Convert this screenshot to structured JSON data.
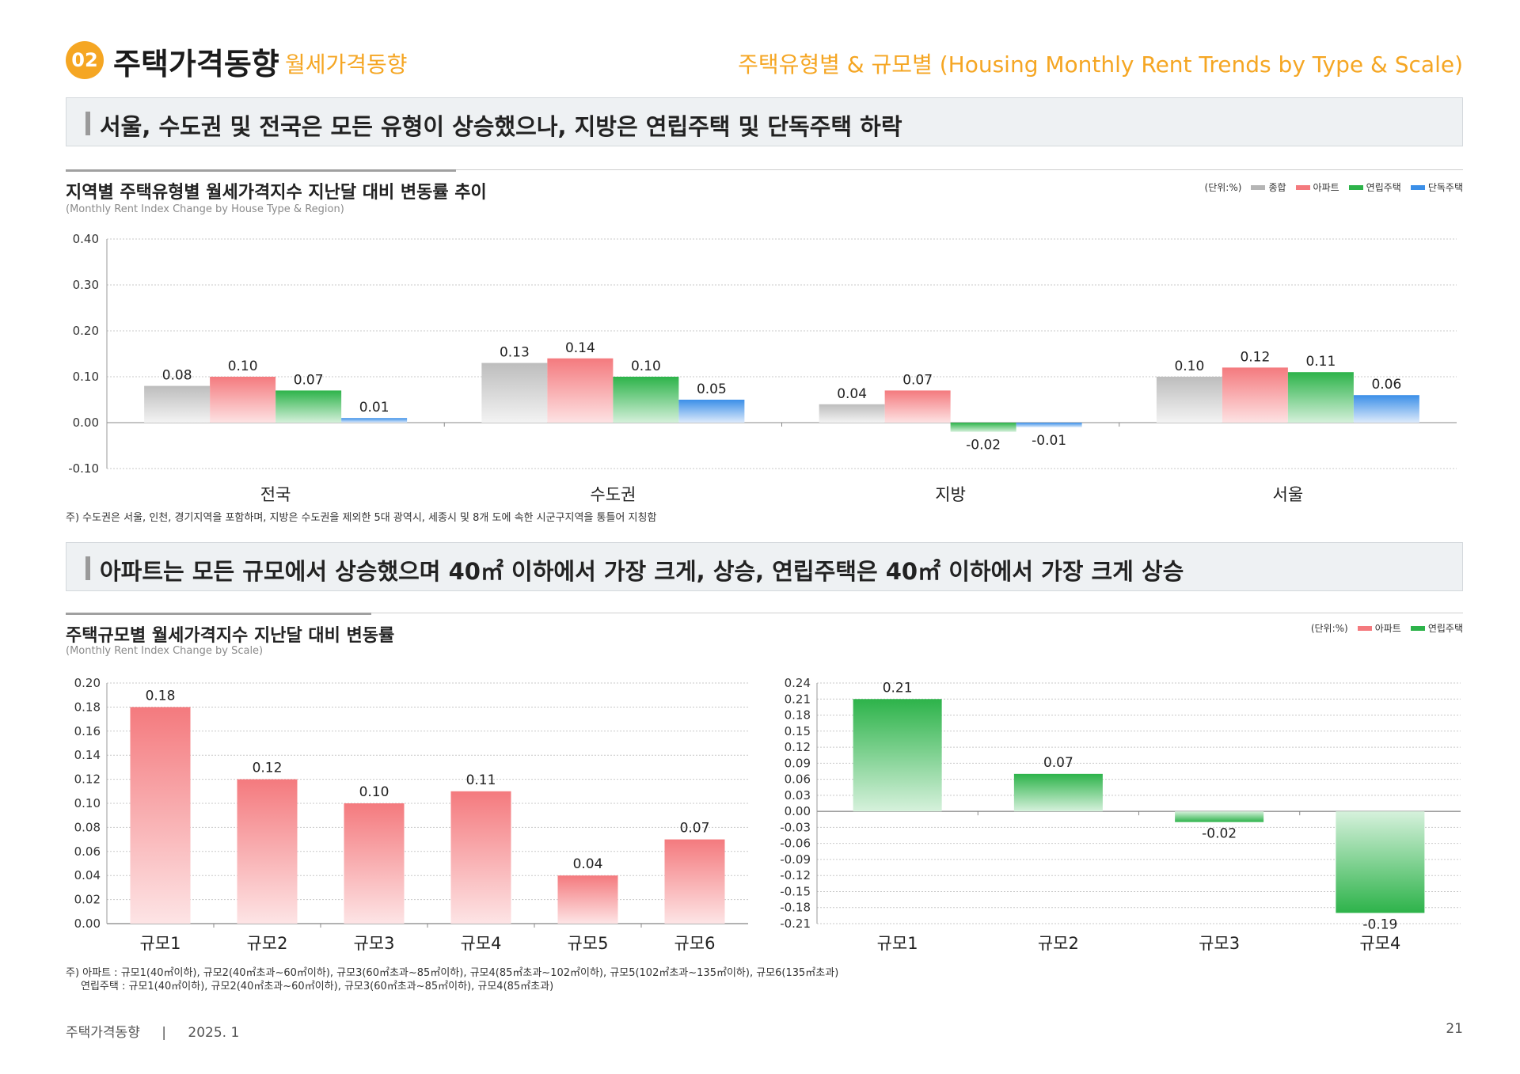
{
  "header": {
    "badge": "02",
    "title": "주택가격동향",
    "subtitle": "월세가격동향",
    "right": "주택유형별 & 규모별 (Housing Monthly Rent Trends by Type & Scale)"
  },
  "section1": {
    "banner": "서울, 수도권 및 전국은 모든 유형이 상승했으나, 지방은 연립주택 및 단독주택 하락",
    "chart_title": "지역별 주택유형별 월세가격지수 지난달 대비 변동률 추이",
    "chart_subtitle": "(Monthly Rent Index Change by House Type & Region)",
    "unit": "(단위:%)",
    "note": "주) 수도권은 서울, 인천, 경기지역을 포함하며, 지방은 수도권을 제외한 5대 광역시, 세종시 및 8개 도에 속한 시군구지역을 통틀어 지칭함"
  },
  "section2": {
    "banner": "아파트는 모든 규모에서 상승했으며 40㎡ 이하에서 가장 크게, 상승, 연립주택은 40㎡ 이하에서 가장 크게 상승",
    "chart_title": "주택규모별 월세가격지수 지난달 대비 변동률",
    "chart_subtitle": "(Monthly Rent Index Change by Scale)",
    "unit": "(단위:%)",
    "note1": "주) 아파트 : 규모1(40㎡이하), 규모2(40㎡초과~60㎡이하), 규모3(60㎡초과~85㎡이하), 규모4(85㎡초과~102㎡이하), 규모5(102㎡초과~135㎡이하), 규모6(135㎡초과)",
    "note2": "연립주택 : 규모1(40㎡이하), 규모2(40㎡초과~60㎡이하), 규모3(60㎡초과~85㎡이하), 규모4(85㎡초과)"
  },
  "footer": {
    "left": "주택가격동향",
    "sep": "|",
    "date": "2025. 1",
    "page": "21"
  },
  "colors": {
    "accent": "#f5a623",
    "gray": "#b5b5b5",
    "apt": "#f47a7e",
    "row": "#2db34a",
    "detached": "#3b8fe8"
  },
  "chart_data": [
    {
      "type": "bar",
      "categories": [
        "전국",
        "수도권",
        "지방",
        "서울"
      ],
      "series": [
        {
          "name": "종합",
          "values": [
            0.08,
            0.13,
            0.04,
            0.1
          ]
        },
        {
          "name": "아파트",
          "values": [
            0.1,
            0.14,
            0.07,
            0.12
          ]
        },
        {
          "name": "연립주택",
          "values": [
            0.07,
            0.1,
            -0.02,
            0.11
          ]
        },
        {
          "name": "단독주택",
          "values": [
            0.01,
            0.05,
            -0.01,
            0.06
          ]
        }
      ],
      "ylim": [
        -0.1,
        0.4
      ],
      "yticks": [
        "0.40",
        "0.30",
        "0.20",
        "0.10",
        "0.00",
        "-0.10"
      ],
      "labels": [
        [
          "0.08",
          "0.13",
          "0.04",
          "0.10"
        ],
        [
          "0.10",
          "0.14",
          "0.07",
          "0.12"
        ],
        [
          "0.07",
          "0.10",
          "-0.02",
          "0.11"
        ],
        [
          "0.01",
          "0.05",
          "-0.01",
          "0.06"
        ]
      ],
      "legend": "top-right",
      "grid": true
    },
    {
      "type": "bar",
      "categories": [
        "규모1",
        "규모2",
        "규모3",
        "규모4",
        "규모5",
        "규모6"
      ],
      "series": [
        {
          "name": "아파트",
          "values": [
            0.18,
            0.12,
            0.1,
            0.11,
            0.04,
            0.07
          ]
        }
      ],
      "labels": [
        "0.18",
        "0.12",
        "0.10",
        "0.11",
        "0.04",
        "0.07"
      ],
      "ylim": [
        0,
        0.2
      ],
      "yticks": [
        "0.20",
        "0.18",
        "0.16",
        "0.14",
        "0.12",
        "0.10",
        "0.08",
        "0.06",
        "0.04",
        "0.02",
        "0.00"
      ],
      "grid": true
    },
    {
      "type": "bar",
      "categories": [
        "규모1",
        "규모2",
        "규모3",
        "규모4"
      ],
      "series": [
        {
          "name": "연립주택",
          "values": [
            0.21,
            0.07,
            -0.02,
            -0.19
          ]
        }
      ],
      "labels": [
        "0.21",
        "0.07",
        "-0.02",
        "-0.19"
      ],
      "ylim": [
        -0.21,
        0.24
      ],
      "yticks": [
        "0.24",
        "0.21",
        "0.18",
        "0.15",
        "0.12",
        "0.09",
        "0.06",
        "0.03",
        "0.00",
        "-0.03",
        "-0.06",
        "-0.09",
        "-0.12",
        "-0.15",
        "-0.18",
        "-0.21"
      ],
      "legend": "top-right",
      "grid": true
    }
  ]
}
